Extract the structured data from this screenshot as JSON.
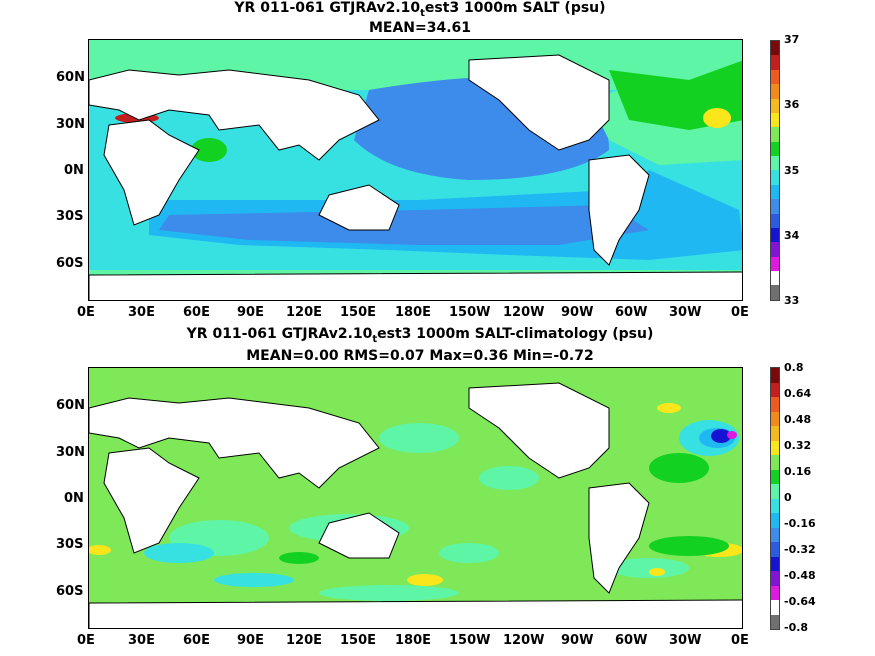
{
  "panels": [
    {
      "title_main": "YR 011-061 GTJRAv2.10",
      "title_sub": "t",
      "title_rest": "est3 1000m SALT (psu)",
      "stats": "MEAN=34.61",
      "lat_labels": [
        "60N",
        "30N",
        "0N",
        "30S",
        "60S"
      ],
      "lon_labels": [
        "0E",
        "30E",
        "60E",
        "90E",
        "120E",
        "150E",
        "180E",
        "150W",
        "120W",
        "90W",
        "60W",
        "30W",
        "0E"
      ],
      "colorbar": {
        "labels": [
          "37",
          "36",
          "35",
          "34",
          "33"
        ],
        "colors": [
          "#7a0a0a",
          "#c41f1f",
          "#ee5a20",
          "#f08a1a",
          "#f5ba20",
          "#fbe61c",
          "#7ee858",
          "#13d121",
          "#5ff5a6",
          "#37e1e1",
          "#1fb8f2",
          "#3d8bea",
          "#2a5be1",
          "#1414d2",
          "#8214d6",
          "#e019e0",
          "#ffffff",
          "#707070"
        ]
      }
    },
    {
      "title_main": "YR 011-061 GTJRAv2.10",
      "title_sub": "t",
      "title_rest": "est3 1000m SALT-climatology (psu)",
      "stats": "MEAN=0.00   RMS=0.07   Max=0.36   Min=-0.72",
      "lat_labels": [
        "60N",
        "30N",
        "0N",
        "30S",
        "60S"
      ],
      "lon_labels": [
        "0E",
        "30E",
        "60E",
        "90E",
        "120E",
        "150E",
        "180E",
        "150W",
        "120W",
        "90W",
        "60W",
        "30W",
        "0E"
      ],
      "colorbar": {
        "labels": [
          "0.8",
          "0.64",
          "0.48",
          "0.32",
          "0.16",
          "0",
          "-0.16",
          "-0.32",
          "-0.48",
          "-0.64",
          "-0.8"
        ],
        "colors": [
          "#7a0a0a",
          "#c41f1f",
          "#ee5a20",
          "#f08a1a",
          "#f5ba20",
          "#fbe61c",
          "#7ee858",
          "#13d121",
          "#5ff5a6",
          "#37e1e1",
          "#1fb8f2",
          "#3d8bea",
          "#2a5be1",
          "#1414d2",
          "#8214d6",
          "#e019e0",
          "#ffffff",
          "#707070"
        ]
      }
    }
  ]
}
